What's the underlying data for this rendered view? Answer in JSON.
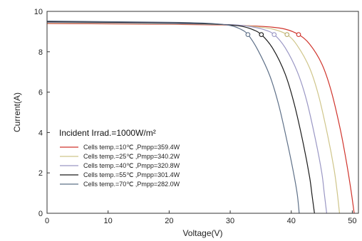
{
  "chart_data": {
    "type": "line",
    "xlabel": "Voltage(V)",
    "ylabel": "Current(A)",
    "xlim": [
      0,
      51
    ],
    "ylim": [
      0,
      10
    ],
    "xticks": [
      0,
      10,
      20,
      30,
      40,
      50
    ],
    "yticks": [
      0,
      2,
      4,
      6,
      8,
      10
    ],
    "grid": false,
    "legend_title": "Incident Irrad.=1000W/m²",
    "legend_position": "lower-left",
    "series": [
      {
        "name": "Cells temp.=10℃ ,Pmpp=359.4W",
        "color": "#d0342c",
        "x": [
          0,
          20,
          30,
          36,
          39,
          41.2,
          43,
          45,
          46.5,
          48,
          49,
          49.8,
          50.3
        ],
        "y": [
          9.4,
          9.36,
          9.32,
          9.24,
          9.12,
          8.85,
          8.38,
          7.4,
          6.1,
          4.2,
          2.6,
          1.1,
          0
        ],
        "mpp": [
          41.2,
          8.85
        ]
      },
      {
        "name": "Cells temp.=25℃ ,Pmpp=340.2W",
        "color": "#cfc58a",
        "x": [
          0,
          20,
          30,
          34,
          37,
          39.3,
          41,
          43,
          44.5,
          46,
          47,
          47.5,
          47.9
        ],
        "y": [
          9.43,
          9.38,
          9.33,
          9.25,
          9.12,
          8.85,
          8.3,
          7.2,
          5.8,
          3.8,
          2.2,
          1.1,
          0
        ],
        "mpp": [
          39.3,
          8.85
        ]
      },
      {
        "name": "Cells temp.=40℃ ,Pmpp=320.8W",
        "color": "#9a97c4",
        "x": [
          0,
          20,
          30,
          33,
          35.5,
          37.2,
          39,
          41,
          42.5,
          44,
          45,
          45.4,
          45.8
        ],
        "y": [
          9.46,
          9.4,
          9.34,
          9.26,
          9.1,
          8.85,
          8.2,
          7.0,
          5.6,
          3.6,
          2.0,
          1.0,
          0
        ],
        "mpp": [
          37.2,
          8.85
        ]
      },
      {
        "name": "Cells temp.=55℃ ,Pmpp=301.4W",
        "color": "#1a1a1a",
        "x": [
          0,
          20,
          28,
          31.5,
          33.5,
          35.1,
          37,
          39,
          40.5,
          42,
          43,
          43.4,
          43.8
        ],
        "y": [
          9.49,
          9.43,
          9.36,
          9.28,
          9.12,
          8.85,
          8.15,
          6.9,
          5.4,
          3.4,
          1.8,
          0.9,
          0
        ],
        "mpp": [
          35.1,
          8.85
        ]
      },
      {
        "name": "Cells temp.=70℃ ,Pmpp=282.0W",
        "color": "#5e7088",
        "x": [
          0,
          20,
          27,
          30,
          31.7,
          32.9,
          34.5,
          36.5,
          38,
          39.5,
          40.5,
          41,
          41.3
        ],
        "y": [
          9.52,
          9.46,
          9.4,
          9.3,
          9.12,
          8.85,
          8.1,
          6.8,
          5.3,
          3.3,
          1.8,
          0.9,
          0
        ],
        "mpp": [
          32.9,
          8.85
        ]
      }
    ]
  }
}
